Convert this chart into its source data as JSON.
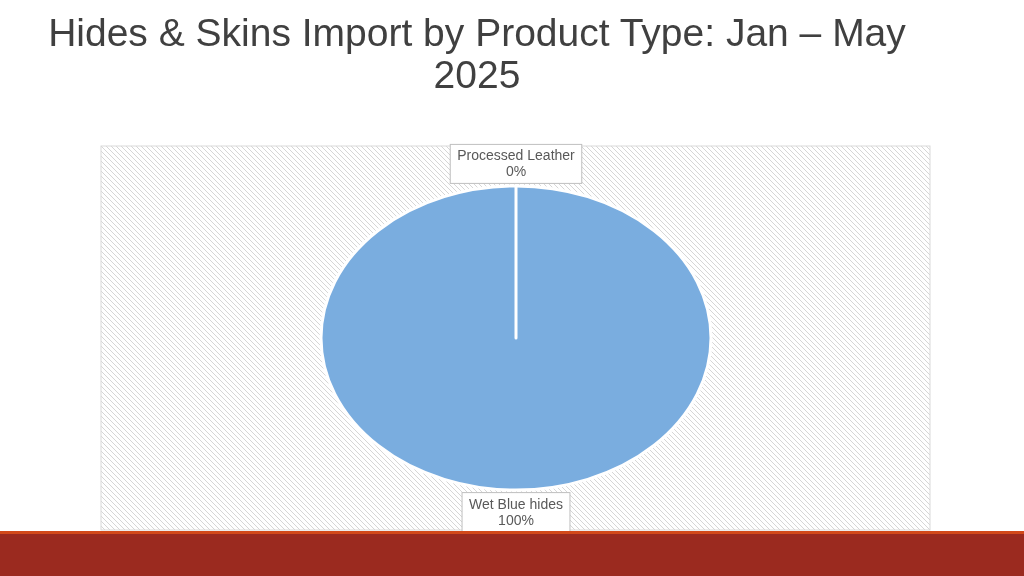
{
  "chart_data": {
    "type": "pie",
    "title": "Hides & Skins Import by Product Type: Jan – May 2025",
    "categories": [
      "Processed Leather",
      "Wet Blue hides"
    ],
    "values": [
      0,
      100
    ],
    "colors": [
      "#ed7d31",
      "#7aaddf"
    ],
    "value_labels": [
      "0%",
      "100%"
    ]
  }
}
